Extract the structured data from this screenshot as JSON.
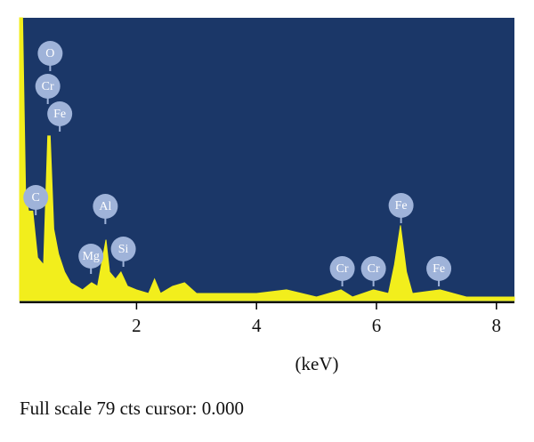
{
  "chart_data": {
    "type": "area",
    "x": [
      0.05,
      0.1,
      0.15,
      0.2,
      0.27,
      0.35,
      0.45,
      0.52,
      0.56,
      0.62,
      0.7,
      0.8,
      0.9,
      1.0,
      1.1,
      1.25,
      1.35,
      1.49,
      1.55,
      1.65,
      1.74,
      1.85,
      2.0,
      2.2,
      2.3,
      2.4,
      2.6,
      2.8,
      3.0,
      3.5,
      4.0,
      4.5,
      5.0,
      5.41,
      5.6,
      5.95,
      6.2,
      6.3,
      6.4,
      6.5,
      6.6,
      7.06,
      7.5,
      8.0,
      8.3
    ],
    "values": [
      79,
      79,
      30,
      25,
      25,
      12,
      10,
      46,
      46,
      20,
      13,
      8,
      5,
      4,
      3,
      5,
      4,
      17,
      8,
      6,
      8,
      4,
      3,
      2,
      6,
      2,
      4,
      5,
      2,
      2,
      2,
      3,
      1,
      3,
      1,
      3,
      2,
      10,
      21,
      8,
      2,
      3,
      1,
      1,
      1
    ],
    "color": "#f2ee1c",
    "background": "#1b3768",
    "xlim": [
      0.05,
      8.3
    ],
    "ylim": [
      0,
      79
    ],
    "xticks": [
      2,
      4,
      6,
      8
    ],
    "xlabel": "(keV)",
    "annotations": [
      {
        "label": "O",
        "x": 0.56
      },
      {
        "label": "Cr",
        "x": 0.52
      },
      {
        "label": "Fe",
        "x": 0.72
      },
      {
        "label": "C",
        "x": 0.32
      },
      {
        "label": "Al",
        "x": 1.48
      },
      {
        "label": "Mg",
        "x": 1.24
      },
      {
        "label": "Si",
        "x": 1.78
      },
      {
        "label": "Cr",
        "x": 5.43
      },
      {
        "label": "Cr",
        "x": 5.95
      },
      {
        "label": "Fe",
        "x": 6.41
      },
      {
        "label": "Fe",
        "x": 7.04
      }
    ],
    "footer": "Full scale 79 cts cursor: 0.000"
  }
}
